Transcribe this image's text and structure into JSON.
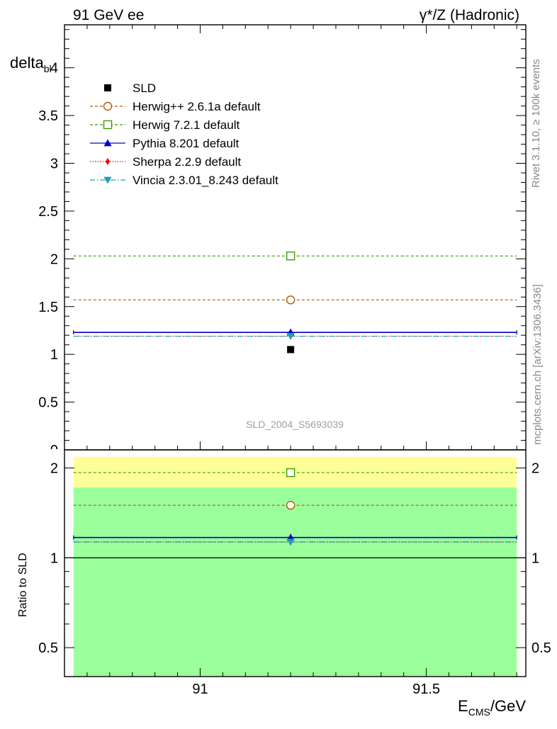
{
  "header": {
    "left_title": "91 GeV ee",
    "right_title_gamma": "γ",
    "right_title_rest": "*/Z (Hadronic)"
  },
  "side_text": {
    "rivet": "Rivet 3.1.10, ≥ 100k events",
    "mcplots": "mcplots.cern.ch [arXiv:1306.3436]"
  },
  "watermark": "SLD_2004_S5693039",
  "chart_data": {
    "type": "scatter",
    "title": "γ*/Z (Hadronic)",
    "ylabel_main": "delta",
    "ylabel_sub": "bl",
    "ylabel_ratio": "Ratio to SLD",
    "xlabel_main": "E",
    "xlabel_sub": "CMS",
    "xlabel_unit": "/GeV",
    "xlim": [
      90.7,
      91.72
    ],
    "ylim_main": [
      0,
      4.45
    ],
    "ylim_ratio": [
      0.4,
      2.3
    ],
    "x_ticks": [
      {
        "value": 91.0,
        "label": "91"
      },
      {
        "value": 91.5,
        "label": "91.5"
      }
    ],
    "y_ticks_main": [
      {
        "value": 0.5,
        "label": "0.5"
      },
      {
        "value": 1.0,
        "label": "1"
      },
      {
        "value": 1.5,
        "label": "1.5"
      },
      {
        "value": 2.0,
        "label": "2"
      },
      {
        "value": 2.5,
        "label": "2.5"
      },
      {
        "value": 3.0,
        "label": "3"
      },
      {
        "value": 3.5,
        "label": "3.5"
      },
      {
        "value": 4.0,
        "label": "4"
      }
    ],
    "y_ticks_ratio": [
      {
        "value": 0.5,
        "label": "0.5"
      },
      {
        "value": 1.0,
        "label": "1"
      },
      {
        "value": 2.0,
        "label": "2"
      }
    ],
    "ratio_bands": {
      "green": [
        0.4,
        1.72
      ],
      "yellow": [
        0.4,
        2.18
      ],
      "green_color": "#9bff9b",
      "yellow_color": "#ffff99"
    },
    "data": {
      "name": "SLD",
      "x": 91.2,
      "y": 1.05,
      "color": "#000000"
    },
    "series": [
      {
        "name": "Herwig++ 2.6.1a default",
        "y": 1.57,
        "ratio": 1.5,
        "color": "#b05a00",
        "dash": "4,3",
        "marker": "circle",
        "x_range": [
          90.72,
          91.7
        ]
      },
      {
        "name": "Herwig 7.2.1 default",
        "y": 2.03,
        "ratio": 1.93,
        "color": "#3a9a00",
        "dash": "4,3",
        "marker": "square",
        "x_range": [
          90.72,
          91.7
        ]
      },
      {
        "name": "Pythia 8.201 default",
        "y": 1.23,
        "ratio": 1.17,
        "color": "#0000cc",
        "dash": "",
        "marker": "triangle-up",
        "x_range": [
          90.72,
          91.7
        ]
      },
      {
        "name": "Sherpa 2.2.9 default",
        "y": 1.19,
        "ratio": 1.13,
        "color": "#ee0000",
        "dash": "1.5,2",
        "marker": "diamond",
        "x_range": [
          90.72,
          91.7
        ]
      },
      {
        "name": "Vincia 2.3.01_8.243 default",
        "y": 1.19,
        "ratio": 1.13,
        "color": "#1a9fb5",
        "dash": "7,3,1.5,3",
        "marker": "triangle-down",
        "x_range": [
          90.72,
          91.7
        ]
      }
    ],
    "point_x": 91.2,
    "legend_position": "top-left"
  }
}
